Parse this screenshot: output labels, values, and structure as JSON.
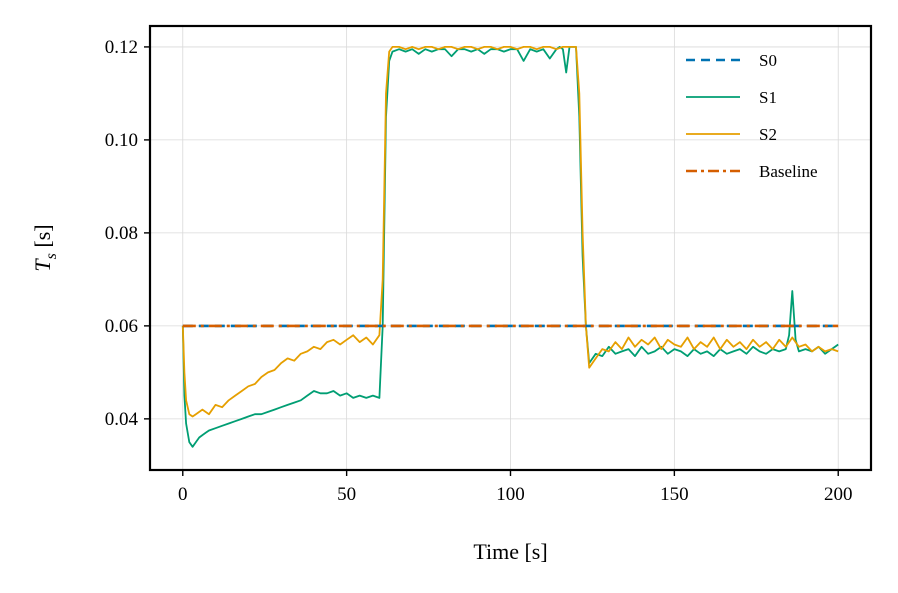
{
  "chart_data": {
    "type": "line",
    "xlabel": "Time [s]",
    "ylabel": "T_s [s]",
    "xlim": [
      -10,
      210
    ],
    "ylim": [
      0.029,
      0.1245
    ],
    "xticks": [
      0,
      50,
      100,
      150,
      200
    ],
    "yticks": [
      0.04,
      0.06,
      0.08,
      0.1,
      0.12
    ],
    "xtick_labels": [
      "0",
      "50",
      "100",
      "150",
      "200"
    ],
    "ytick_labels": [
      "0.04",
      "0.06",
      "0.08",
      "0.10",
      "0.12"
    ],
    "grid": true,
    "legend_position": "top-right",
    "series": [
      {
        "name": "S0",
        "color": "#0072b2",
        "style": "dashed",
        "points": [
          [
            0,
            0.06
          ],
          [
            200,
            0.06
          ]
        ]
      },
      {
        "name": "S1",
        "color": "#009e73",
        "style": "solid",
        "points": [
          [
            0,
            0.06
          ],
          [
            0.5,
            0.045
          ],
          [
            1,
            0.039
          ],
          [
            2,
            0.035
          ],
          [
            3,
            0.034
          ],
          [
            4,
            0.035
          ],
          [
            5,
            0.036
          ],
          [
            6,
            0.0365
          ],
          [
            7,
            0.037
          ],
          [
            8,
            0.0375
          ],
          [
            10,
            0.038
          ],
          [
            12,
            0.0385
          ],
          [
            14,
            0.039
          ],
          [
            16,
            0.0395
          ],
          [
            18,
            0.04
          ],
          [
            20,
            0.0405
          ],
          [
            22,
            0.041
          ],
          [
            24,
            0.041
          ],
          [
            26,
            0.0415
          ],
          [
            28,
            0.042
          ],
          [
            30,
            0.0425
          ],
          [
            32,
            0.043
          ],
          [
            34,
            0.0435
          ],
          [
            36,
            0.044
          ],
          [
            38,
            0.045
          ],
          [
            40,
            0.046
          ],
          [
            42,
            0.0455
          ],
          [
            44,
            0.0455
          ],
          [
            46,
            0.046
          ],
          [
            48,
            0.045
          ],
          [
            50,
            0.0455
          ],
          [
            52,
            0.0445
          ],
          [
            54,
            0.045
          ],
          [
            56,
            0.0445
          ],
          [
            58,
            0.045
          ],
          [
            60,
            0.0445
          ],
          [
            61,
            0.06
          ],
          [
            62,
            0.105
          ],
          [
            63,
            0.117
          ],
          [
            64,
            0.119
          ],
          [
            66,
            0.1195
          ],
          [
            68,
            0.119
          ],
          [
            70,
            0.1195
          ],
          [
            72,
            0.1185
          ],
          [
            74,
            0.1195
          ],
          [
            76,
            0.119
          ],
          [
            78,
            0.1195
          ],
          [
            80,
            0.1195
          ],
          [
            82,
            0.118
          ],
          [
            84,
            0.1195
          ],
          [
            86,
            0.1195
          ],
          [
            88,
            0.119
          ],
          [
            90,
            0.1195
          ],
          [
            92,
            0.1185
          ],
          [
            94,
            0.1195
          ],
          [
            96,
            0.1195
          ],
          [
            98,
            0.119
          ],
          [
            100,
            0.1195
          ],
          [
            102,
            0.1195
          ],
          [
            104,
            0.117
          ],
          [
            106,
            0.1195
          ],
          [
            108,
            0.119
          ],
          [
            110,
            0.1195
          ],
          [
            112,
            0.1175
          ],
          [
            114,
            0.1195
          ],
          [
            115,
            0.12
          ],
          [
            116,
            0.1195
          ],
          [
            117,
            0.1145
          ],
          [
            118,
            0.12
          ],
          [
            120,
            0.12
          ],
          [
            121,
            0.105
          ],
          [
            122,
            0.075
          ],
          [
            123,
            0.06
          ],
          [
            124,
            0.052
          ],
          [
            126,
            0.054
          ],
          [
            128,
            0.0535
          ],
          [
            130,
            0.0555
          ],
          [
            132,
            0.054
          ],
          [
            134,
            0.0545
          ],
          [
            136,
            0.055
          ],
          [
            138,
            0.0535
          ],
          [
            140,
            0.0555
          ],
          [
            142,
            0.054
          ],
          [
            144,
            0.0545
          ],
          [
            146,
            0.0555
          ],
          [
            148,
            0.054
          ],
          [
            150,
            0.055
          ],
          [
            152,
            0.0545
          ],
          [
            154,
            0.0535
          ],
          [
            156,
            0.055
          ],
          [
            158,
            0.054
          ],
          [
            160,
            0.0545
          ],
          [
            162,
            0.0535
          ],
          [
            164,
            0.055
          ],
          [
            166,
            0.054
          ],
          [
            168,
            0.0545
          ],
          [
            170,
            0.055
          ],
          [
            172,
            0.054
          ],
          [
            174,
            0.0555
          ],
          [
            176,
            0.0545
          ],
          [
            178,
            0.054
          ],
          [
            180,
            0.055
          ],
          [
            182,
            0.0545
          ],
          [
            184,
            0.055
          ],
          [
            185,
            0.058
          ],
          [
            186,
            0.0675
          ],
          [
            187,
            0.057
          ],
          [
            188,
            0.0545
          ],
          [
            190,
            0.055
          ],
          [
            192,
            0.0545
          ],
          [
            194,
            0.0555
          ],
          [
            196,
            0.054
          ],
          [
            198,
            0.055
          ],
          [
            200,
            0.056
          ]
        ]
      },
      {
        "name": "S2",
        "color": "#e69f00",
        "style": "solid",
        "points": [
          [
            0,
            0.06
          ],
          [
            0.5,
            0.05
          ],
          [
            1,
            0.044
          ],
          [
            2,
            0.041
          ],
          [
            3,
            0.0405
          ],
          [
            4,
            0.041
          ],
          [
            6,
            0.042
          ],
          [
            8,
            0.041
          ],
          [
            10,
            0.043
          ],
          [
            12,
            0.0425
          ],
          [
            14,
            0.044
          ],
          [
            16,
            0.045
          ],
          [
            18,
            0.046
          ],
          [
            20,
            0.047
          ],
          [
            22,
            0.0475
          ],
          [
            24,
            0.049
          ],
          [
            26,
            0.05
          ],
          [
            28,
            0.0505
          ],
          [
            30,
            0.052
          ],
          [
            32,
            0.053
          ],
          [
            34,
            0.0525
          ],
          [
            36,
            0.054
          ],
          [
            38,
            0.0545
          ],
          [
            40,
            0.0555
          ],
          [
            42,
            0.055
          ],
          [
            44,
            0.0565
          ],
          [
            46,
            0.057
          ],
          [
            48,
            0.056
          ],
          [
            50,
            0.057
          ],
          [
            52,
            0.058
          ],
          [
            54,
            0.0565
          ],
          [
            56,
            0.0575
          ],
          [
            58,
            0.056
          ],
          [
            60,
            0.058
          ],
          [
            61,
            0.07
          ],
          [
            62,
            0.11
          ],
          [
            63,
            0.119
          ],
          [
            64,
            0.12
          ],
          [
            66,
            0.12
          ],
          [
            68,
            0.1195
          ],
          [
            70,
            0.12
          ],
          [
            72,
            0.1195
          ],
          [
            74,
            0.12
          ],
          [
            76,
            0.12
          ],
          [
            78,
            0.1195
          ],
          [
            80,
            0.12
          ],
          [
            82,
            0.12
          ],
          [
            84,
            0.1195
          ],
          [
            86,
            0.12
          ],
          [
            88,
            0.12
          ],
          [
            90,
            0.1195
          ],
          [
            92,
            0.12
          ],
          [
            94,
            0.12
          ],
          [
            96,
            0.1195
          ],
          [
            98,
            0.12
          ],
          [
            100,
            0.12
          ],
          [
            102,
            0.1195
          ],
          [
            104,
            0.12
          ],
          [
            106,
            0.12
          ],
          [
            108,
            0.1195
          ],
          [
            110,
            0.12
          ],
          [
            112,
            0.12
          ],
          [
            114,
            0.1195
          ],
          [
            116,
            0.12
          ],
          [
            118,
            0.12
          ],
          [
            120,
            0.12
          ],
          [
            121,
            0.11
          ],
          [
            122,
            0.08
          ],
          [
            123,
            0.06
          ],
          [
            124,
            0.051
          ],
          [
            126,
            0.053
          ],
          [
            128,
            0.055
          ],
          [
            130,
            0.0545
          ],
          [
            132,
            0.0565
          ],
          [
            134,
            0.055
          ],
          [
            136,
            0.0575
          ],
          [
            138,
            0.0555
          ],
          [
            140,
            0.057
          ],
          [
            142,
            0.056
          ],
          [
            144,
            0.0575
          ],
          [
            146,
            0.055
          ],
          [
            148,
            0.057
          ],
          [
            150,
            0.056
          ],
          [
            152,
            0.0555
          ],
          [
            154,
            0.0575
          ],
          [
            156,
            0.055
          ],
          [
            158,
            0.0565
          ],
          [
            160,
            0.0555
          ],
          [
            162,
            0.0575
          ],
          [
            164,
            0.055
          ],
          [
            166,
            0.057
          ],
          [
            168,
            0.0555
          ],
          [
            170,
            0.0565
          ],
          [
            172,
            0.055
          ],
          [
            174,
            0.057
          ],
          [
            176,
            0.0555
          ],
          [
            178,
            0.0565
          ],
          [
            180,
            0.055
          ],
          [
            182,
            0.057
          ],
          [
            184,
            0.0555
          ],
          [
            186,
            0.0575
          ],
          [
            188,
            0.0555
          ],
          [
            190,
            0.056
          ],
          [
            192,
            0.0545
          ],
          [
            194,
            0.0555
          ],
          [
            196,
            0.0545
          ],
          [
            198,
            0.055
          ],
          [
            200,
            0.0545
          ]
        ]
      },
      {
        "name": "Baseline",
        "color": "#d55e00",
        "style": "dashdot",
        "points": [
          [
            0,
            0.06
          ],
          [
            200,
            0.06
          ]
        ]
      }
    ]
  }
}
